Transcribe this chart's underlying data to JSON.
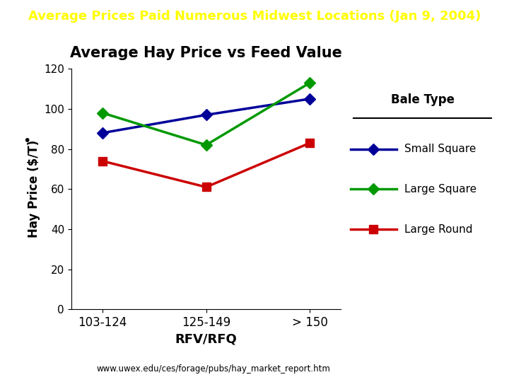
{
  "title_bar_text": "Average Prices Paid Numerous Midwest Locations (Jan 9, 2004)",
  "title_bar_bg": "#003399",
  "title_bar_fg": "#ffff00",
  "chart_title": "Average Hay Price vs Feed Value",
  "xlabel": "RFV/RFQ",
  "ylabel": "Hay Price ($/T)",
  "x_categories": [
    "103-124",
    "125-149",
    "> 150"
  ],
  "ylim": [
    0,
    120
  ],
  "yticks": [
    0,
    20,
    40,
    60,
    80,
    100,
    120
  ],
  "series": [
    {
      "label": "Small Square",
      "color": "#000099",
      "marker": "D",
      "values": [
        88,
        97,
        105
      ]
    },
    {
      "label": "Large Square",
      "color": "#009900",
      "marker": "D",
      "values": [
        98,
        82,
        113
      ]
    },
    {
      "label": "Large Round",
      "color": "#cc0000",
      "marker": "s",
      "values": [
        74,
        61,
        83
      ]
    }
  ],
  "legend_title": "Bale Type",
  "url_text": "www.uwex.edu/ces/forage/pubs/hay_market_report.htm",
  "background_color": "#ffffff",
  "fig_width": 7.2,
  "fig_height": 5.4,
  "dpi": 100
}
